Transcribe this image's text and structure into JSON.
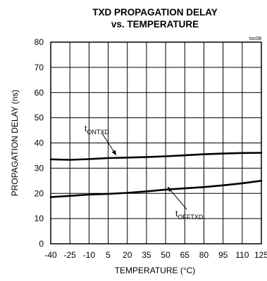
{
  "chart_data": {
    "type": "line",
    "title_line1": "TXD PROPAGATION DELAY",
    "title_line2": "vs. TEMPERATURE",
    "tag": "toc08",
    "xlabel": "TEMPERATURE (°C)",
    "ylabel": "PROPAGATION DELAY (ns)",
    "xlim": [
      -40,
      125
    ],
    "ylim": [
      0,
      80
    ],
    "grid": true,
    "x_ticks": [
      "-40",
      "-25",
      "-10",
      "5",
      "20",
      "35",
      "50",
      "65",
      "80",
      "95",
      "110",
      "125"
    ],
    "y_ticks": [
      "0",
      "10",
      "20",
      "30",
      "40",
      "50",
      "60",
      "70",
      "80"
    ],
    "series": [
      {
        "name": "tONTXD",
        "label_main": "t",
        "label_sub": "ONTXD",
        "x": [
          -40,
          -25,
          -10,
          5,
          20,
          35,
          50,
          65,
          80,
          95,
          110,
          125
        ],
        "y": [
          33.5,
          33.3,
          33.6,
          34.0,
          34.2,
          34.4,
          34.7,
          35.1,
          35.5,
          35.8,
          36.0,
          36.1
        ]
      },
      {
        "name": "tOFFTXD",
        "label_main": "t",
        "label_sub": "OFFTXD",
        "x": [
          -40,
          -25,
          -10,
          5,
          20,
          35,
          50,
          65,
          80,
          95,
          110,
          125
        ],
        "y": [
          18.5,
          19.0,
          19.5,
          19.8,
          20.2,
          20.8,
          21.5,
          22.0,
          22.5,
          23.2,
          24.0,
          25.0
        ]
      }
    ]
  }
}
